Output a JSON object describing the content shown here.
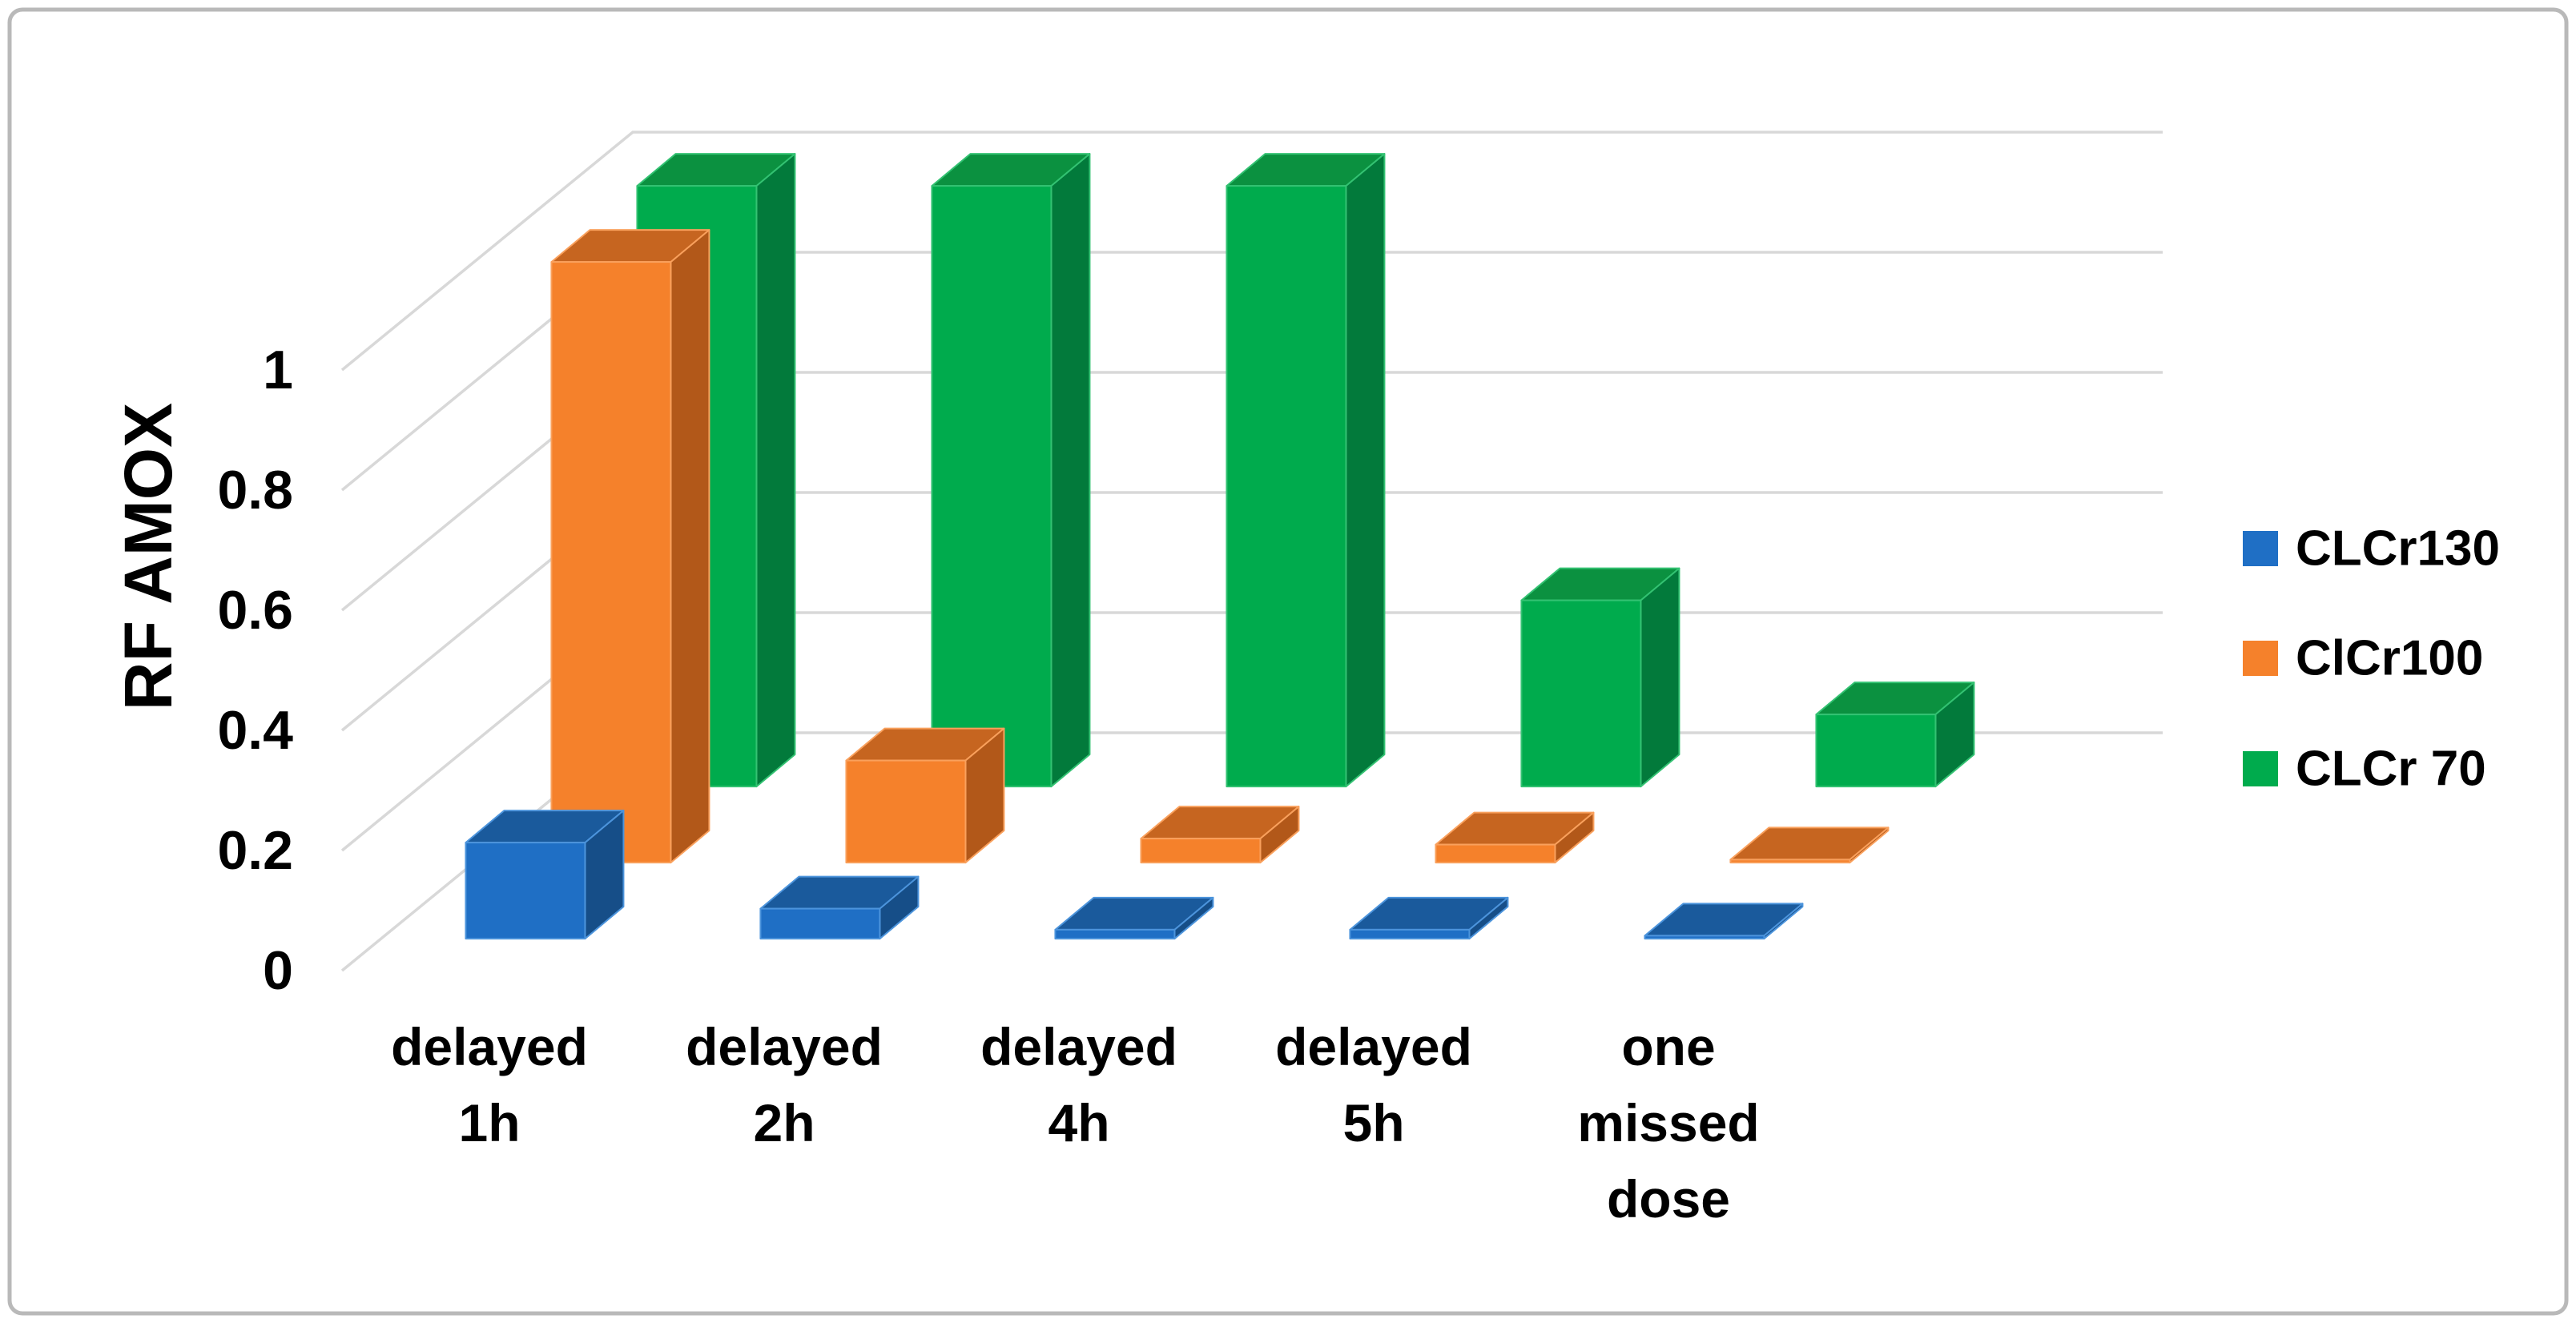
{
  "figure": {
    "background_color": "#FFFFFF",
    "border_color": "#B9B9B9"
  },
  "chart_data": {
    "type": "bar",
    "subtype": "3d-clustered-column",
    "title": "",
    "xlabel": "",
    "ylabel": "RF AMOX",
    "ylim": [
      0,
      1.1
    ],
    "grid": true,
    "gridline_color": "#D8D8D8",
    "legend_position": "right",
    "categories": [
      {
        "lines": [
          "delayed",
          "1h"
        ],
        "text": "delayed 1h"
      },
      {
        "lines": [
          "delayed",
          "2h"
        ],
        "text": "delayed 2h"
      },
      {
        "lines": [
          "delayed",
          "4h"
        ],
        "text": "delayed 4h"
      },
      {
        "lines": [
          "delayed",
          "5h"
        ],
        "text": "delayed 5h"
      },
      {
        "lines": [
          "one",
          "missed",
          "dose"
        ],
        "text": "one missed dose"
      }
    ],
    "yticks": [
      0,
      0.2,
      0.4,
      0.6,
      0.8,
      1
    ],
    "ytick_labels": [
      "0",
      "0.2",
      "0.4",
      "0.6",
      "0.8",
      "1"
    ],
    "series": [
      {
        "name": "CLCr130",
        "values": [
          0.16,
          0.05,
          0.015,
          0.015,
          0.005
        ],
        "color": "#1F6FC5",
        "color_top": "#1A5A9C",
        "color_side": "#164E88",
        "color_edge": "#4C94DC"
      },
      {
        "name": "ClCr100",
        "values": [
          1.0,
          0.17,
          0.04,
          0.03,
          0.005
        ],
        "color": "#F5812B",
        "color_top": "#C66520",
        "color_side": "#B25819",
        "color_edge": "#F9A05C"
      },
      {
        "name": "CLCr 70",
        "values": [
          1.0,
          1.0,
          1.0,
          0.31,
          0.12
        ],
        "color": "#00AB4D",
        "color_top": "#0B9140",
        "color_side": "#027A3B",
        "color_edge": "#33C272"
      }
    ]
  }
}
